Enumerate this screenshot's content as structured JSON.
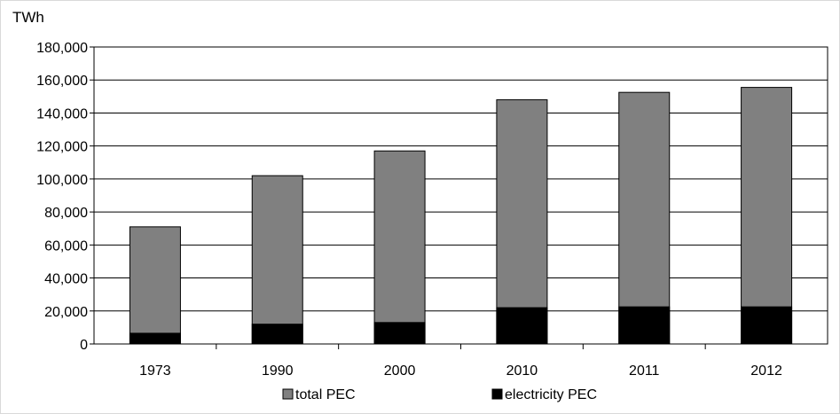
{
  "chart_data": {
    "type": "bar",
    "stacked": false,
    "overlapped": true,
    "unit_label": "TWh",
    "categories": [
      "1973",
      "1990",
      "2000",
      "2010",
      "2011",
      "2012"
    ],
    "series": [
      {
        "name": "total PEC",
        "color": "#808080",
        "values": [
          71000,
          102000,
          117000,
          148000,
          152500,
          155500
        ]
      },
      {
        "name": "electricity PEC",
        "color": "#000000",
        "values": [
          6500,
          12000,
          13000,
          22000,
          22500,
          22500
        ]
      }
    ],
    "ylim": [
      0,
      180000
    ],
    "yticks": [
      0,
      20000,
      40000,
      60000,
      80000,
      100000,
      120000,
      140000,
      160000,
      180000
    ],
    "ytick_labels": [
      "0",
      "20,000",
      "40,000",
      "60,000",
      "80,000",
      "100,000",
      "120,000",
      "140,000",
      "160,000",
      "180,000"
    ],
    "grid": true,
    "legend_position": "bottom"
  }
}
